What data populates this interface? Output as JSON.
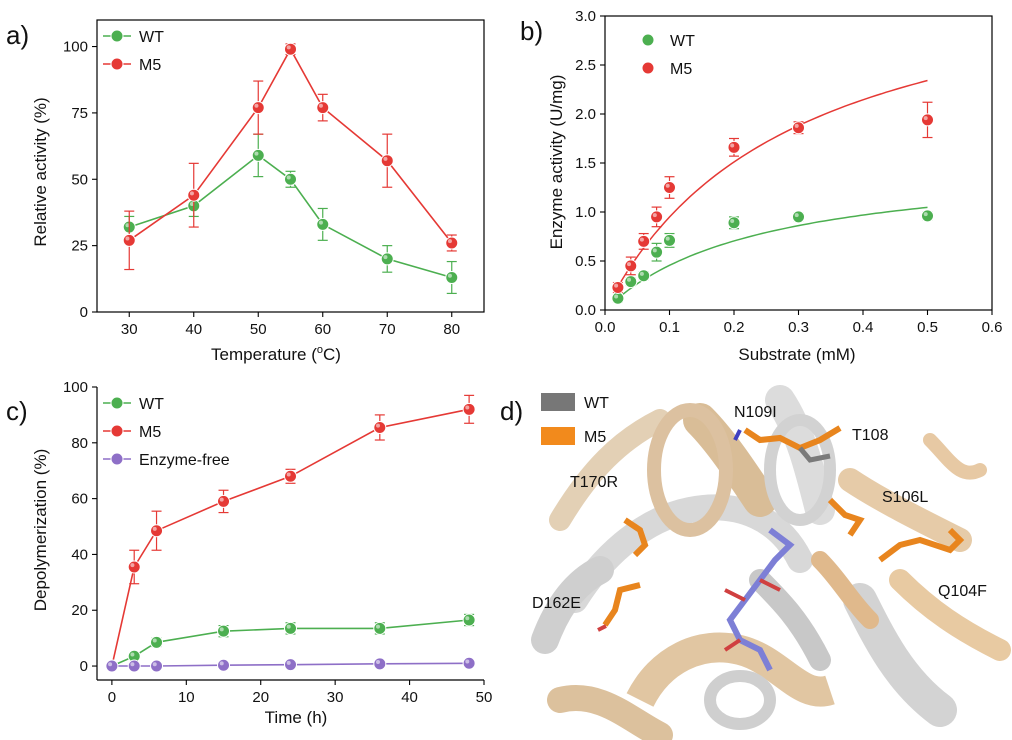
{
  "colors": {
    "wt": "#4caf50",
    "m5": "#e53935",
    "free": "#8e6fc7",
    "wt_struct": "#777777",
    "m5_struct": "#f28a1c"
  },
  "panels": {
    "a": {
      "label": "a)",
      "xlabel": "Temperature (",
      "xlabel_sup": "o",
      "xlabel_end": "C)",
      "ylabel": "Relative activity (%)"
    },
    "b": {
      "label": "b)",
      "xlabel": "Substrate (mM)",
      "ylabel": "Enzyme activity (U/mg)"
    },
    "c": {
      "label": "c)",
      "xlabel": "Time (h)",
      "ylabel": "Depolymerization (%)"
    },
    "d": {
      "label": "d)",
      "legend": [
        "WT",
        "M5"
      ],
      "residues": [
        "N109I",
        "T108",
        "T170R",
        "S106L",
        "D162E",
        "Q104F"
      ]
    }
  },
  "chart_data": [
    {
      "panel": "a",
      "type": "line",
      "xlabel": "Temperature (°C)",
      "ylabel": "Relative activity (%)",
      "xlim": [
        25,
        85
      ],
      "ylim": [
        0,
        110
      ],
      "xticks": [
        30,
        40,
        50,
        60,
        70,
        80
      ],
      "yticks": [
        0,
        25,
        50,
        75,
        100
      ],
      "legend_position": "top-left",
      "series": [
        {
          "name": "WT",
          "x": [
            30,
            40,
            50,
            55,
            60,
            70,
            80
          ],
          "y": [
            32,
            40,
            59,
            50,
            33,
            20,
            13
          ],
          "err": [
            4,
            4,
            8,
            3,
            6,
            5,
            6
          ]
        },
        {
          "name": "M5",
          "x": [
            30,
            40,
            50,
            55,
            60,
            70,
            80
          ],
          "y": [
            27,
            44,
            77,
            99,
            77,
            57,
            26
          ],
          "err": [
            11,
            12,
            10,
            2,
            5,
            10,
            3
          ]
        }
      ]
    },
    {
      "panel": "b",
      "type": "scatter",
      "xlabel": "Substrate (mM)",
      "ylabel": "Enzyme activity (U/mg)",
      "xlim": [
        0,
        0.6
      ],
      "ylim": [
        0,
        3.0
      ],
      "xticks": [
        0.0,
        0.1,
        0.2,
        0.3,
        0.4,
        0.5,
        0.6
      ],
      "yticks": [
        0.0,
        0.5,
        1.0,
        1.5,
        2.0,
        2.5,
        3.0
      ],
      "legend_position": "top-left",
      "series": [
        {
          "name": "WT",
          "x": [
            0.02,
            0.04,
            0.06,
            0.08,
            0.1,
            0.2,
            0.3,
            0.5
          ],
          "y": [
            0.12,
            0.29,
            0.35,
            0.59,
            0.71,
            0.89,
            0.95,
            0.96
          ],
          "err": [
            0.04,
            0.04,
            0.04,
            0.09,
            0.07,
            0.06,
            0.04,
            0.04
          ],
          "fit": {
            "vmax": 1.55,
            "km": 0.24
          }
        },
        {
          "name": "M5",
          "x": [
            0.02,
            0.04,
            0.06,
            0.08,
            0.1,
            0.2,
            0.3,
            0.5
          ],
          "y": [
            0.23,
            0.45,
            0.7,
            0.95,
            1.25,
            1.66,
            1.86,
            1.94
          ],
          "err": [
            0.05,
            0.09,
            0.08,
            0.1,
            0.11,
            0.09,
            0.06,
            0.18
          ],
          "fit": {
            "vmax": 3.7,
            "km": 0.29
          }
        }
      ]
    },
    {
      "panel": "c",
      "type": "line",
      "xlabel": "Time (h)",
      "ylabel": "Depolymerization (%)",
      "xlim": [
        -2,
        50
      ],
      "ylim": [
        -5,
        100
      ],
      "xticks": [
        0,
        10,
        20,
        30,
        40,
        50
      ],
      "yticks": [
        0,
        20,
        40,
        60,
        80,
        100
      ],
      "legend_position": "top-left",
      "series": [
        {
          "name": "WT",
          "x": [
            0,
            3,
            6,
            15,
            24,
            36,
            48
          ],
          "y": [
            0,
            3.5,
            8.5,
            12.5,
            13.5,
            13.5,
            16.5
          ],
          "err": [
            0,
            1,
            1.5,
            2,
            2,
            2,
            2
          ]
        },
        {
          "name": "M5",
          "x": [
            0,
            3,
            6,
            15,
            24,
            36,
            48
          ],
          "y": [
            0,
            35.5,
            48.5,
            59,
            68,
            85.5,
            92
          ],
          "err": [
            0,
            6,
            7,
            4,
            2.5,
            4.5,
            5
          ]
        },
        {
          "name": "Enzyme-free",
          "x": [
            0,
            3,
            6,
            15,
            24,
            36,
            48
          ],
          "y": [
            0,
            0,
            0,
            0.3,
            0.5,
            0.8,
            1.0
          ],
          "err": [
            0,
            0,
            0,
            0,
            0,
            0,
            0
          ]
        }
      ]
    }
  ]
}
